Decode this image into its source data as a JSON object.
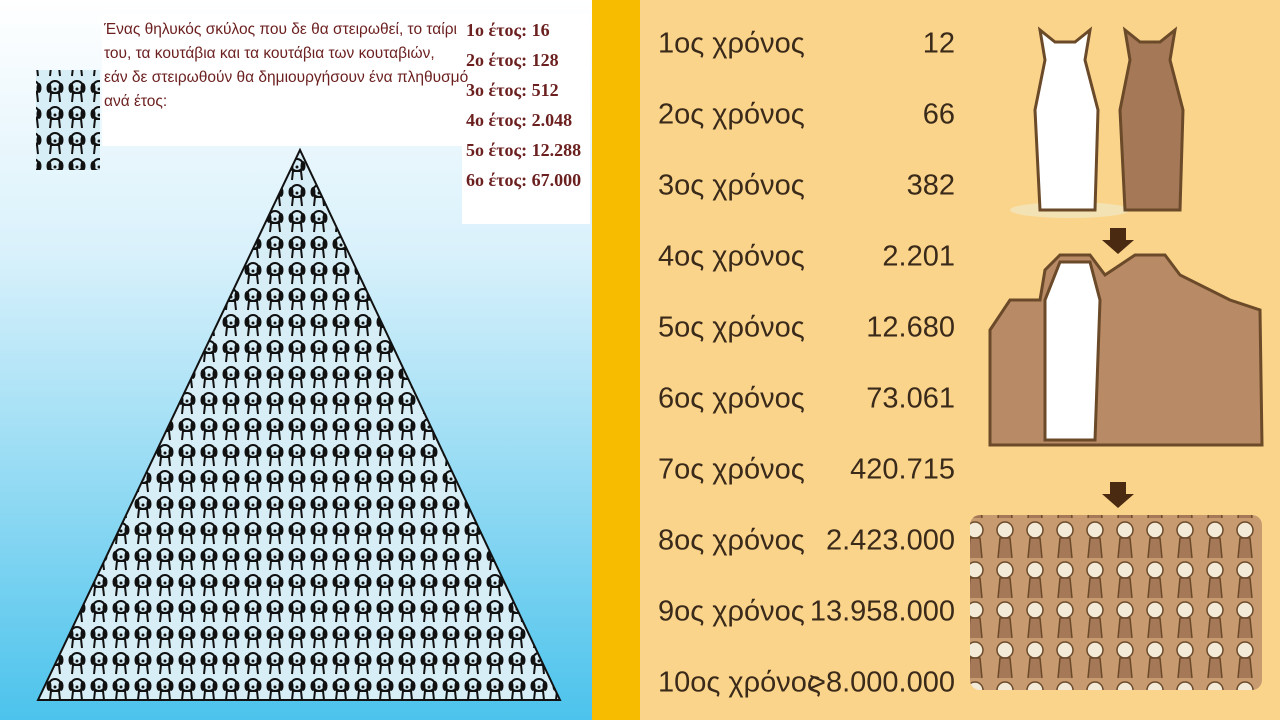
{
  "left": {
    "description": [
      "Ένας θηλυκός σκύλος που δε θα στειρωθεί, το ταίρι",
      "του, τα κουτάβια και τα κουτάβια των κουταβιών,",
      "εάν δε στειρωθούν θα δημιουργήσουν ένα πληθυσμό",
      "ανά έτος:"
    ],
    "years": [
      "1ο έτος: 16",
      "2ο έτος: 128",
      "3ο έτος: 512",
      "4ο έτος: 2.048",
      "5ο έτος: 12.288",
      "6ο έτος: 67.000"
    ]
  },
  "right": {
    "rows": [
      {
        "label": "1ος χρόνος",
        "value": "12"
      },
      {
        "label": "2ος χρόνος",
        "value": "66"
      },
      {
        "label": "3ος χρόνος",
        "value": "382"
      },
      {
        "label": "4ος χρόνος",
        "value": "2.201"
      },
      {
        "label": "5ος χρόνος",
        "value": "12.680"
      },
      {
        "label": "6ος χρόνος",
        "value": "73.061"
      },
      {
        "label": "7ος χρόνος",
        "value": "420.715"
      },
      {
        "label": "8ος χρόνος",
        "value": "2.423.000"
      },
      {
        "label": "9ος χρόνος",
        "value": "13.958.000"
      },
      {
        "label": "10ος χρόνος",
        "value": ">8.000.000"
      }
    ]
  }
}
